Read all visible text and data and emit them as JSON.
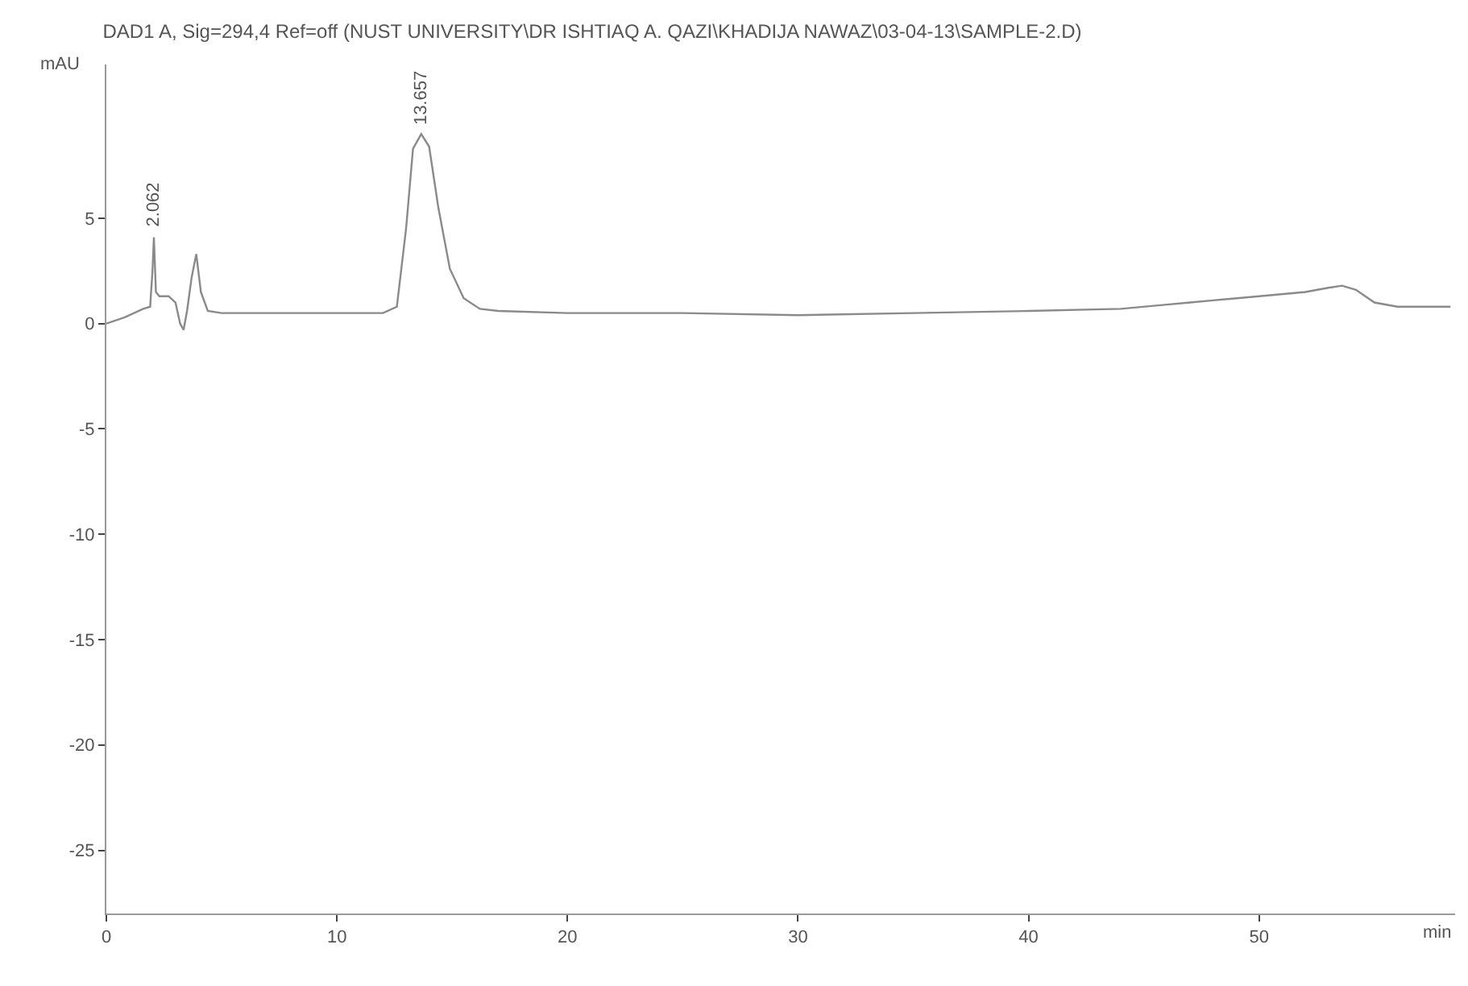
{
  "chart_data": {
    "type": "line",
    "title": "DAD1 A, Sig=294,4 Ref=off (NUST UNIVERSITY\\DR ISHTIAQ A. QAZI\\KHADIJA NAWAZ\\03-04-13\\SAMPLE-2.D)",
    "xlabel": "min",
    "ylabel": "mAU",
    "xlim": [
      0,
      58.5
    ],
    "ylim": [
      -28,
      12.3
    ],
    "xticks": [
      0,
      10,
      20,
      30,
      40,
      50
    ],
    "yticks": [
      -25,
      -20,
      -15,
      -10,
      -5,
      0,
      5
    ],
    "marker": "none",
    "line_style": "solid",
    "series": [
      {
        "color": "#8a8a8a",
        "x": [
          0,
          0.8,
          1.6,
          1.9,
          2.0,
          2.062,
          2.15,
          2.3,
          2.7,
          3.0,
          3.2,
          3.35,
          3.5,
          3.7,
          3.9,
          4.1,
          4.4,
          5,
          6,
          8,
          10,
          12,
          12.6,
          13.0,
          13.3,
          13.657,
          14.0,
          14.4,
          14.9,
          15.5,
          16.2,
          17,
          20,
          25,
          30,
          35,
          40,
          44,
          46,
          47,
          48,
          50,
          52,
          53,
          53.6,
          54.2,
          55,
          56,
          58.3
        ],
        "values": [
          0,
          0.3,
          0.7,
          0.8,
          2.5,
          4.1,
          1.5,
          1.3,
          1.3,
          1.0,
          0.0,
          -0.3,
          0.6,
          2.2,
          3.3,
          1.5,
          0.6,
          0.5,
          0.5,
          0.5,
          0.5,
          0.5,
          0.8,
          4.5,
          8.3,
          9.0,
          8.4,
          5.5,
          2.6,
          1.2,
          0.7,
          0.6,
          0.5,
          0.5,
          0.4,
          0.5,
          0.6,
          0.7,
          0.9,
          1.0,
          1.1,
          1.3,
          1.5,
          1.7,
          1.8,
          1.6,
          1.0,
          0.8,
          0.8
        ]
      }
    ],
    "annotations": [
      {
        "text": "2.062",
        "x": 2.062,
        "y": 4.1
      },
      {
        "text": "13.657",
        "x": 13.657,
        "y": 9.0
      }
    ]
  }
}
